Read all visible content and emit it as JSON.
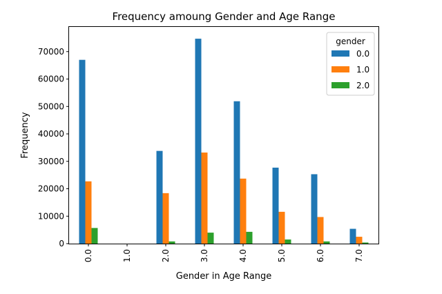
{
  "chart_data": {
    "type": "bar",
    "title": "Frequency amoung Gender and Age Range",
    "xlabel": "Gender in Age Range",
    "ylabel": "Frequency",
    "categories": [
      "0.0",
      "1.0",
      "2.0",
      "3.0",
      "4.0",
      "5.0",
      "6.0",
      "7.0"
    ],
    "yticks": [
      "0",
      "10000",
      "20000",
      "30000",
      "40000",
      "50000",
      "60000",
      "70000"
    ],
    "ylim": [
      0,
      79000
    ],
    "grid": false,
    "legend": {
      "title": "gender",
      "placement": "top-right"
    },
    "series": [
      {
        "name": "0.0",
        "color": "#1f77b4",
        "values": [
          67000,
          0,
          33800,
          74700,
          51900,
          27700,
          25300,
          5400
        ]
      },
      {
        "name": "1.0",
        "color": "#ff7f0e",
        "values": [
          22700,
          0,
          18400,
          33200,
          23700,
          11600,
          9700,
          2500
        ]
      },
      {
        "name": "2.0",
        "color": "#2ca02c",
        "values": [
          5700,
          0,
          800,
          4000,
          4300,
          1500,
          800,
          400
        ]
      }
    ]
  }
}
